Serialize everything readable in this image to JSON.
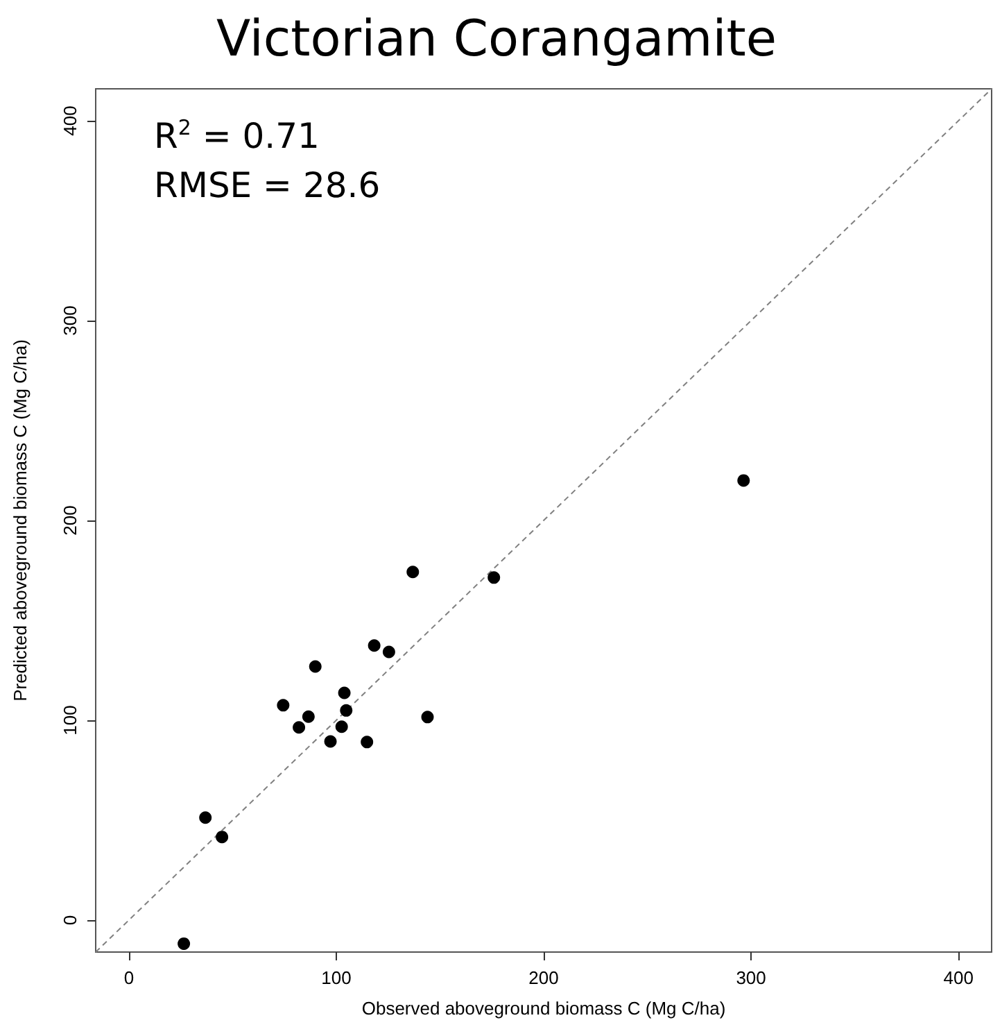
{
  "chart_data": {
    "type": "scatter",
    "title": "Victorian Corangamite",
    "xlabel": "Observed aboveground biomass C (Mg C/ha)",
    "ylabel": "Predicted aboveground biomass C (Mg C/ha)",
    "annotations": [
      "R$^{2}$ = 0.71",
      "RMSE = 28.6"
    ],
    "series": [
      {
        "color": "#000000",
        "marker": "circle",
        "x": [
          26.5,
          36.9,
          44.9,
          74.4,
          82,
          86.6,
          89.9,
          97.2,
          102.6,
          103.9,
          104.8,
          114.8,
          118.3,
          125.4,
          136.9,
          144,
          176,
          296.4
        ],
        "values": [
          -11.8,
          51.3,
          41.6,
          107.5,
          96.4,
          101.8,
          126.9,
          89.4,
          96.8,
          113.7,
          104.9,
          89.1,
          137.4,
          134.2,
          174.2,
          101.6,
          171.4,
          220
        ]
      },
      {
        "type": "line",
        "color": "#808080",
        "line_style": "dashed",
        "marker": "none",
        "x": [
          -16,
          416
        ],
        "values": [
          -16,
          416
        ]
      }
    ],
    "xlim": [
      -16,
      416
    ],
    "ylim": [
      -16,
      416
    ],
    "xticks": [
      0,
      100,
      200,
      300,
      400
    ],
    "yticks": [
      0,
      100,
      200,
      300,
      400
    ],
    "grid": false
  }
}
